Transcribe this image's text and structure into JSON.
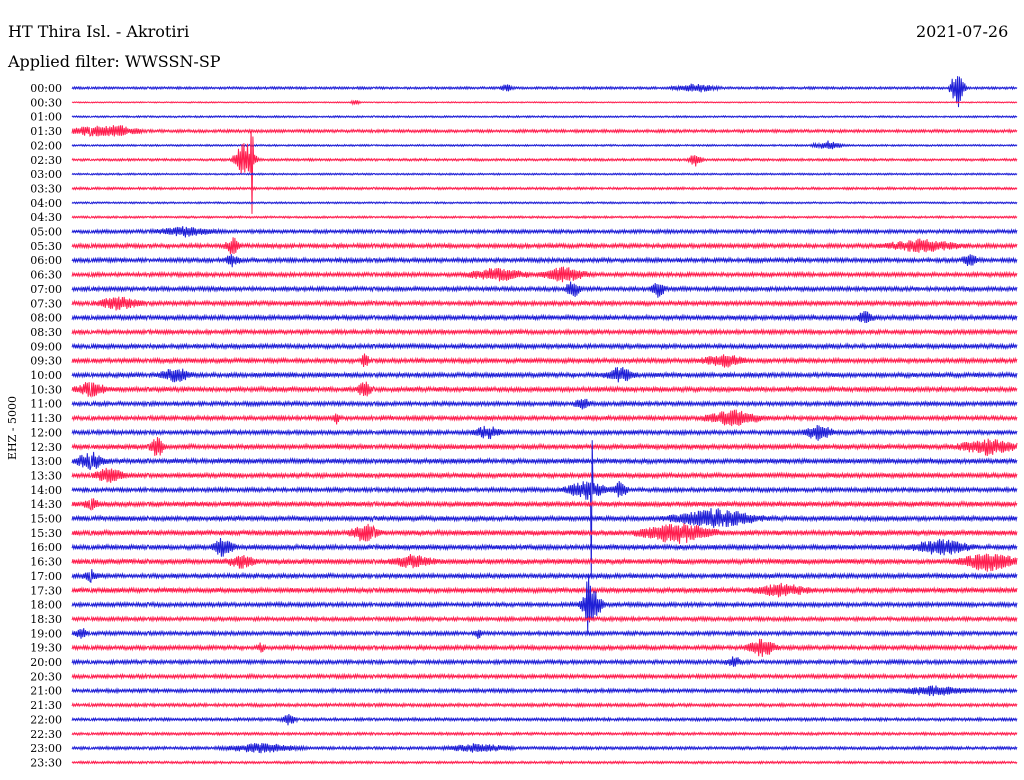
{
  "chart_data": {
    "type": "line",
    "title": "HT Thira Isl. - Akrotiri",
    "subtitle": "Applied filter: WWSSN-SP",
    "date": "2021-07-26",
    "ylabel": "EHZ - 5000",
    "colors": {
      "even": "#1f1fd6",
      "odd": "#ff1f4f"
    },
    "categories": [
      "00:00",
      "00:30",
      "01:00",
      "01:30",
      "02:00",
      "02:30",
      "03:00",
      "03:30",
      "04:00",
      "04:30",
      "05:00",
      "05:30",
      "06:00",
      "06:30",
      "07:00",
      "07:30",
      "08:00",
      "08:30",
      "09:00",
      "09:30",
      "10:00",
      "10:30",
      "11:00",
      "11:30",
      "12:00",
      "12:30",
      "13:00",
      "13:30",
      "14:00",
      "14:30",
      "15:00",
      "15:30",
      "16:00",
      "16:30",
      "17:00",
      "17:30",
      "18:00",
      "18:30",
      "19:00",
      "19:30",
      "20:00",
      "20:30",
      "21:00",
      "21:30",
      "22:00",
      "22:30",
      "23:00",
      "23:30"
    ],
    "noise": [
      0.8,
      0.4,
      0.6,
      1.0,
      0.6,
      0.8,
      0.6,
      0.8,
      0.6,
      0.7,
      1.2,
      1.4,
      1.4,
      1.4,
      1.4,
      1.5,
      1.5,
      1.4,
      1.5,
      1.5,
      1.5,
      1.6,
      1.4,
      1.4,
      1.4,
      1.6,
      1.6,
      1.6,
      1.4,
      1.7,
      1.6,
      1.7,
      1.6,
      1.7,
      1.5,
      1.6,
      1.4,
      1.3,
      1.3,
      1.4,
      1.3,
      1.3,
      1.2,
      1.1,
      1.0,
      0.9,
      1.0,
      0.8
    ],
    "events": [
      {
        "row": 0,
        "t": 0.937,
        "amp": 14,
        "dur": 0.01
      },
      {
        "row": 0,
        "t": 0.46,
        "amp": 3,
        "dur": 0.008
      },
      {
        "row": 0,
        "t": 0.66,
        "amp": 3,
        "dur": 0.03
      },
      {
        "row": 1,
        "t": 0.3,
        "amp": 2,
        "dur": 0.006
      },
      {
        "row": 3,
        "t": 0.02,
        "amp": 3,
        "dur": 0.04
      },
      {
        "row": 3,
        "t": 0.05,
        "amp": 3,
        "dur": 0.03
      },
      {
        "row": 4,
        "t": 0.8,
        "amp": 3,
        "dur": 0.02
      },
      {
        "row": 5,
        "t": 0.183,
        "amp": 13,
        "dur": 0.015
      },
      {
        "row": 5,
        "t": 0.19,
        "amp": 40,
        "dur": 0.002
      },
      {
        "row": 5,
        "t": 0.66,
        "amp": 5,
        "dur": 0.01
      },
      {
        "row": 10,
        "t": 0.12,
        "amp": 3,
        "dur": 0.04
      },
      {
        "row": 11,
        "t": 0.17,
        "amp": 6,
        "dur": 0.01
      },
      {
        "row": 11,
        "t": 0.9,
        "amp": 4,
        "dur": 0.05
      },
      {
        "row": 12,
        "t": 0.95,
        "amp": 5,
        "dur": 0.01
      },
      {
        "row": 12,
        "t": 0.17,
        "amp": 4,
        "dur": 0.01
      },
      {
        "row": 13,
        "t": 0.45,
        "amp": 4,
        "dur": 0.04
      },
      {
        "row": 13,
        "t": 0.52,
        "amp": 5,
        "dur": 0.03
      },
      {
        "row": 14,
        "t": 0.53,
        "amp": 6,
        "dur": 0.01
      },
      {
        "row": 14,
        "t": 0.62,
        "amp": 6,
        "dur": 0.01
      },
      {
        "row": 15,
        "t": 0.05,
        "amp": 4,
        "dur": 0.03
      },
      {
        "row": 16,
        "t": 0.84,
        "amp": 5,
        "dur": 0.01
      },
      {
        "row": 19,
        "t": 0.31,
        "amp": 6,
        "dur": 0.005
      },
      {
        "row": 19,
        "t": 0.69,
        "amp": 4,
        "dur": 0.03
      },
      {
        "row": 20,
        "t": 0.11,
        "amp": 5,
        "dur": 0.02
      },
      {
        "row": 20,
        "t": 0.58,
        "amp": 5,
        "dur": 0.02
      },
      {
        "row": 21,
        "t": 0.02,
        "amp": 5,
        "dur": 0.02
      },
      {
        "row": 21,
        "t": 0.31,
        "amp": 5,
        "dur": 0.01
      },
      {
        "row": 22,
        "t": 0.54,
        "amp": 5,
        "dur": 0.01
      },
      {
        "row": 23,
        "t": 0.28,
        "amp": 4,
        "dur": 0.005
      },
      {
        "row": 23,
        "t": 0.7,
        "amp": 5,
        "dur": 0.04
      },
      {
        "row": 24,
        "t": 0.44,
        "amp": 4,
        "dur": 0.02
      },
      {
        "row": 24,
        "t": 0.79,
        "amp": 5,
        "dur": 0.02
      },
      {
        "row": 25,
        "t": 0.09,
        "amp": 7,
        "dur": 0.01
      },
      {
        "row": 25,
        "t": 0.97,
        "amp": 5,
        "dur": 0.04
      },
      {
        "row": 26,
        "t": 0.02,
        "amp": 6,
        "dur": 0.02
      },
      {
        "row": 27,
        "t": 0.04,
        "amp": 5,
        "dur": 0.02
      },
      {
        "row": 28,
        "t": 0.545,
        "amp": 6,
        "dur": 0.03
      },
      {
        "row": 28,
        "t": 0.55,
        "amp": 210,
        "dur": 0.0008
      },
      {
        "row": 28,
        "t": 0.58,
        "amp": 6,
        "dur": 0.01
      },
      {
        "row": 29,
        "t": 0.02,
        "amp": 4,
        "dur": 0.01
      },
      {
        "row": 30,
        "t": 0.68,
        "amp": 6,
        "dur": 0.06
      },
      {
        "row": 31,
        "t": 0.31,
        "amp": 6,
        "dur": 0.02
      },
      {
        "row": 31,
        "t": 0.64,
        "amp": 7,
        "dur": 0.05
      },
      {
        "row": 32,
        "t": 0.16,
        "amp": 6,
        "dur": 0.015
      },
      {
        "row": 32,
        "t": 0.92,
        "amp": 5,
        "dur": 0.04
      },
      {
        "row": 33,
        "t": 0.18,
        "amp": 4,
        "dur": 0.02
      },
      {
        "row": 33,
        "t": 0.97,
        "amp": 6,
        "dur": 0.04
      },
      {
        "row": 33,
        "t": 0.36,
        "amp": 4,
        "dur": 0.03
      },
      {
        "row": 34,
        "t": 0.02,
        "amp": 4,
        "dur": 0.01
      },
      {
        "row": 35,
        "t": 0.75,
        "amp": 4,
        "dur": 0.04
      },
      {
        "row": 36,
        "t": 0.55,
        "amp": 12,
        "dur": 0.015
      },
      {
        "row": 36,
        "t": 0.546,
        "amp": 20,
        "dur": 0.003
      },
      {
        "row": 38,
        "t": 0.01,
        "amp": 3,
        "dur": 0.01
      },
      {
        "row": 38,
        "t": 0.43,
        "amp": 3,
        "dur": 0.005
      },
      {
        "row": 39,
        "t": 0.73,
        "amp": 6,
        "dur": 0.02
      },
      {
        "row": 39,
        "t": 0.2,
        "amp": 3,
        "dur": 0.005
      },
      {
        "row": 40,
        "t": 0.7,
        "amp": 4,
        "dur": 0.01
      },
      {
        "row": 42,
        "t": 0.91,
        "amp": 3,
        "dur": 0.05
      },
      {
        "row": 44,
        "t": 0.23,
        "amp": 4,
        "dur": 0.01
      },
      {
        "row": 46,
        "t": 0.2,
        "amp": 3,
        "dur": 0.05
      },
      {
        "row": 46,
        "t": 0.43,
        "amp": 3,
        "dur": 0.04
      }
    ]
  }
}
